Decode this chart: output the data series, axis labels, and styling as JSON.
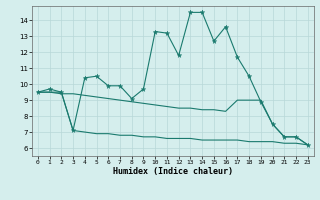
{
  "xlabel": "Humidex (Indice chaleur)",
  "background_color": "#d5eeed",
  "grid_color": "#b8d8d8",
  "line_color": "#1a7a6e",
  "xlim": [
    -0.5,
    23.5
  ],
  "ylim": [
    5.5,
    14.9
  ],
  "yticks": [
    6,
    7,
    8,
    9,
    10,
    11,
    12,
    13,
    14
  ],
  "xticks": [
    0,
    1,
    2,
    3,
    4,
    5,
    6,
    7,
    8,
    9,
    10,
    11,
    12,
    13,
    14,
    15,
    16,
    17,
    18,
    19,
    20,
    21,
    22,
    23
  ],
  "series1_x": [
    0,
    1,
    2,
    3,
    4,
    5,
    6,
    7,
    8,
    9,
    10,
    11,
    12,
    13,
    14,
    15,
    16,
    17,
    18,
    19,
    20,
    21,
    22,
    23
  ],
  "series1_y": [
    9.5,
    9.7,
    9.5,
    7.1,
    10.4,
    10.5,
    9.9,
    9.9,
    9.1,
    9.7,
    13.3,
    13.2,
    11.8,
    14.5,
    14.5,
    12.7,
    13.6,
    11.7,
    10.5,
    8.9,
    7.5,
    6.7,
    6.7,
    6.2
  ],
  "series2_x": [
    0,
    1,
    2,
    3,
    4,
    5,
    6,
    7,
    8,
    9,
    10,
    11,
    12,
    13,
    14,
    15,
    16,
    17,
    18,
    19,
    20,
    21,
    22,
    23
  ],
  "series2_y": [
    9.5,
    9.5,
    9.4,
    9.4,
    9.3,
    9.2,
    9.1,
    9.0,
    8.9,
    8.8,
    8.7,
    8.6,
    8.5,
    8.5,
    8.4,
    8.4,
    8.3,
    9.0,
    9.0,
    9.0,
    7.5,
    6.7,
    6.7,
    6.2
  ],
  "series3_x": [
    0,
    1,
    2,
    3,
    4,
    5,
    6,
    7,
    8,
    9,
    10,
    11,
    12,
    13,
    14,
    15,
    16,
    17,
    18,
    19,
    20,
    21,
    22,
    23
  ],
  "series3_y": [
    9.5,
    9.5,
    9.5,
    7.1,
    7.0,
    6.9,
    6.9,
    6.8,
    6.8,
    6.7,
    6.7,
    6.6,
    6.6,
    6.6,
    6.5,
    6.5,
    6.5,
    6.5,
    6.4,
    6.4,
    6.4,
    6.3,
    6.3,
    6.2
  ],
  "figwidth": 3.2,
  "figheight": 2.0,
  "dpi": 100
}
